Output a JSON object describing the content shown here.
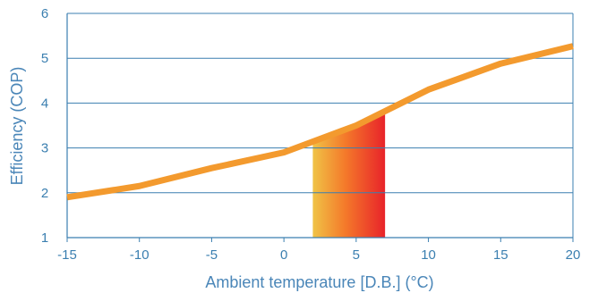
{
  "chart_data": {
    "type": "line",
    "title": "",
    "xlabel": "Ambient temperature [D.B.] (°C)",
    "ylabel": "Efficiency (COP)",
    "xlim": [
      -15,
      20
    ],
    "ylim": [
      1,
      6
    ],
    "x_ticks": [
      -15,
      -10,
      -5,
      0,
      5,
      10,
      15,
      20
    ],
    "y_ticks": [
      1,
      2,
      3,
      4,
      5,
      6
    ],
    "x_tick_labels": [
      "-15",
      "-10",
      "-5",
      "0",
      "5",
      "10",
      "15",
      "20"
    ],
    "y_tick_labels": [
      "1",
      "2",
      "3",
      "4",
      "5",
      "6"
    ],
    "grid": "horizontal",
    "legend": "none",
    "series": [
      {
        "x": [
          -15,
          -10,
          -5,
          0,
          5,
          10,
          15,
          20
        ],
        "y": [
          1.9,
          2.15,
          2.55,
          2.9,
          3.5,
          4.3,
          4.88,
          5.27
        ]
      }
    ],
    "highlight_band": {
      "x_from": 2,
      "x_to": 7
    },
    "colors": {
      "line": "#f39a2e",
      "axis": "#3b7fb0",
      "grid": "#3b7fb0",
      "text": "#3b7fb0",
      "band_start": "#f0c346",
      "band_mid": "#f4792a",
      "band_end": "#e8232a"
    }
  }
}
